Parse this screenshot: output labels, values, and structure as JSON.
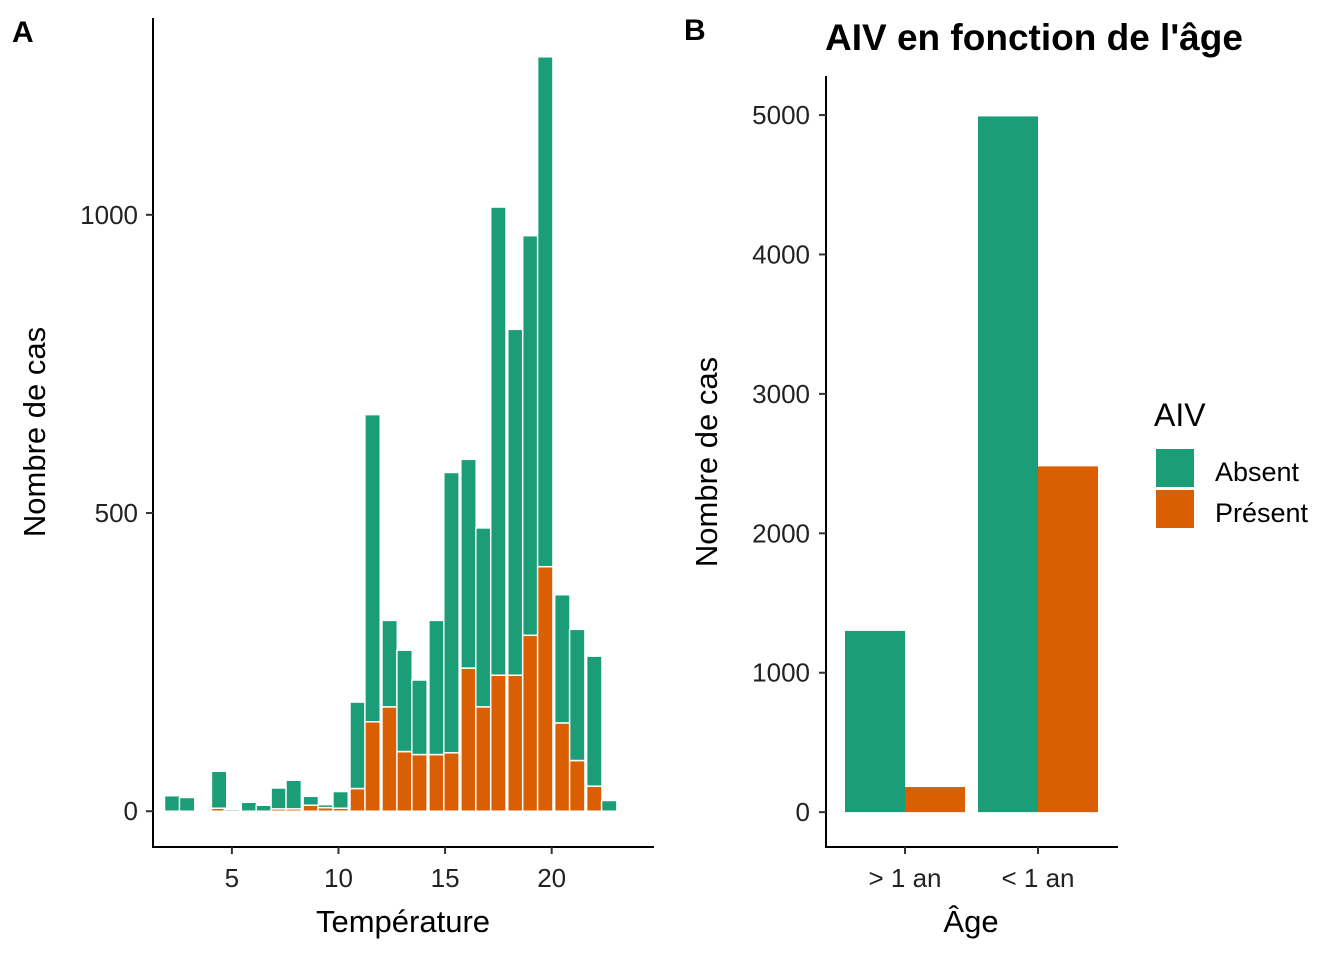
{
  "colors": {
    "absent": "#1b9e77",
    "present": "#d95f02"
  },
  "chart_data": [
    {
      "type": "bar",
      "stacked": true,
      "panel_label": "A",
      "title": "",
      "xlabel": "Température",
      "ylabel": "Nombre de cas",
      "xlim": [
        1.3,
        24.8
      ],
      "ylim": [
        -60,
        1330
      ],
      "xticks": [
        5,
        10,
        15,
        20
      ],
      "yticks": [
        0,
        500,
        1000
      ],
      "bin_width": 0.72,
      "x": [
        2.2,
        2.9,
        4.4,
        5.0,
        5.8,
        6.5,
        7.2,
        7.9,
        8.7,
        9.4,
        10.1,
        10.9,
        11.6,
        12.4,
        13.1,
        13.8,
        14.6,
        15.3,
        16.1,
        16.8,
        17.5,
        18.3,
        19.0,
        19.7,
        20.5,
        21.2,
        22.0,
        22.7
      ],
      "series": [
        {
          "name": "Absent",
          "values": [
            26,
            23,
            62,
            3,
            15,
            10,
            35,
            48,
            15,
            5,
            28,
            145,
            515,
            145,
            170,
            125,
            225,
            470,
            350,
            300,
            785,
            580,
            670,
            855,
            215,
            220,
            218,
            18
          ]
        },
        {
          "name": "Présent",
          "values": [
            0,
            0,
            5,
            0,
            0,
            0,
            4,
            4,
            10,
            6,
            5,
            38,
            150,
            175,
            100,
            95,
            95,
            98,
            240,
            175,
            228,
            228,
            295,
            410,
            148,
            85,
            42,
            0
          ]
        }
      ]
    },
    {
      "type": "bar",
      "grouped": true,
      "panel_label": "B",
      "title": "AIV en fonction de l'âge",
      "xlabel": "Âge",
      "ylabel": "Nombre de cas",
      "categories": [
        "> 1 an",
        "< 1 an"
      ],
      "ylim": [
        -250,
        5280
      ],
      "yticks": [
        0,
        1000,
        2000,
        3000,
        4000,
        5000
      ],
      "series": [
        {
          "name": "Absent",
          "values": [
            1300,
            4990
          ]
        },
        {
          "name": "Présent",
          "values": [
            180,
            2480
          ]
        }
      ],
      "legend": {
        "title": "AIV",
        "entries": [
          "Absent",
          "Présent"
        ],
        "position": "right"
      }
    }
  ]
}
